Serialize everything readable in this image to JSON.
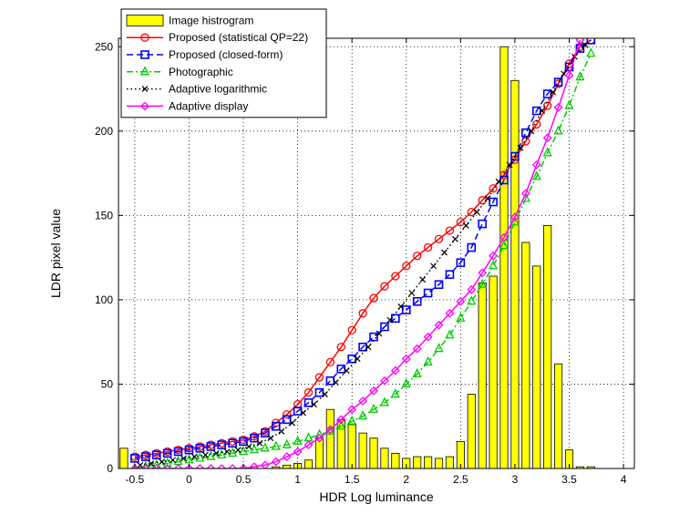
{
  "chart_data": {
    "type": "line",
    "xlabel": "HDR Log luminance",
    "ylabel": "LDR pixel value",
    "xlim": [
      -0.65,
      4.1
    ],
    "ylim": [
      0,
      255
    ],
    "xticks": [
      -0.5,
      0,
      0.5,
      1,
      1.5,
      2,
      2.5,
      3,
      3.5,
      4
    ],
    "xtick_labels": [
      "-0.5",
      "0",
      "0.5",
      "1",
      "1.5",
      "2",
      "2.5",
      "3",
      "3.5",
      "4"
    ],
    "yticks": [
      0,
      50,
      100,
      150,
      200,
      250
    ],
    "ytick_labels": [
      "0",
      "50",
      "100",
      "150",
      "200",
      "250"
    ],
    "grid": true,
    "legend_position": "top-left",
    "histogram": {
      "name": "Image histrogram",
      "color": "#ffff00",
      "edge_color": "#000000",
      "bar_width": 0.07,
      "x": [
        -0.6,
        -0.5,
        -0.4,
        -0.3,
        -0.2,
        -0.1,
        0,
        0.1,
        0.2,
        0.3,
        0.4,
        0.5,
        0.6,
        0.7,
        0.8,
        0.9,
        1.0,
        1.1,
        1.2,
        1.3,
        1.4,
        1.5,
        1.6,
        1.7,
        1.8,
        1.9,
        2.0,
        2.1,
        2.2,
        2.3,
        2.4,
        2.5,
        2.6,
        2.7,
        2.8,
        2.9,
        3.0,
        3.1,
        3.2,
        3.3,
        3.4,
        3.5,
        3.6,
        3.7,
        3.8
      ],
      "values": [
        12,
        0,
        0,
        0,
        0,
        0,
        0,
        0,
        0,
        0,
        0,
        0,
        0,
        0,
        1,
        2,
        3,
        5,
        18,
        35,
        29,
        26,
        21,
        18,
        12,
        9,
        6,
        7,
        7,
        6,
        7,
        16,
        44,
        110,
        114,
        250,
        230,
        134,
        120,
        144,
        62,
        11,
        1,
        1,
        0
      ]
    },
    "series": [
      {
        "name": "Proposed (statistical QP=22)",
        "color": "#ff0000",
        "line": "solid",
        "marker": "circle",
        "x": [
          -0.5,
          -0.4,
          -0.3,
          -0.2,
          -0.1,
          0,
          0.1,
          0.2,
          0.3,
          0.4,
          0.5,
          0.6,
          0.7,
          0.8,
          0.9,
          1.0,
          1.1,
          1.2,
          1.3,
          1.4,
          1.5,
          1.6,
          1.7,
          1.8,
          1.9,
          2.0,
          2.1,
          2.2,
          2.3,
          2.4,
          2.5,
          2.6,
          2.7,
          2.8,
          2.9,
          3.0,
          3.1,
          3.2,
          3.3,
          3.4,
          3.5,
          3.6,
          3.7
        ],
        "y": [
          7,
          8,
          9,
          10,
          11,
          12,
          13,
          14,
          15,
          16,
          17,
          19,
          22,
          27,
          32,
          38,
          45,
          54,
          63,
          72,
          82,
          92,
          101,
          108,
          114,
          120,
          126,
          131,
          136,
          141,
          146,
          152,
          159,
          166,
          174,
          183,
          194,
          204,
          215,
          228,
          240,
          250,
          254
        ]
      },
      {
        "name": "Proposed (closed-form)",
        "color": "#0000ff",
        "line": "dashed",
        "marker": "square",
        "x": [
          -0.5,
          -0.4,
          -0.3,
          -0.2,
          -0.1,
          0,
          0.1,
          0.2,
          0.3,
          0.4,
          0.5,
          0.6,
          0.7,
          0.8,
          0.9,
          1.0,
          1.1,
          1.2,
          1.3,
          1.4,
          1.5,
          1.6,
          1.7,
          1.8,
          1.9,
          2.0,
          2.1,
          2.2,
          2.3,
          2.4,
          2.5,
          2.6,
          2.7,
          2.8,
          2.9,
          3.0,
          3.1,
          3.2,
          3.3,
          3.4,
          3.5,
          3.6,
          3.7
        ],
        "y": [
          6,
          7,
          8,
          9,
          10,
          11,
          12,
          13,
          14,
          15,
          16,
          18,
          21,
          25,
          29,
          34,
          39,
          45,
          52,
          59,
          65,
          72,
          78,
          84,
          89,
          94,
          99,
          104,
          109,
          115,
          122,
          131,
          145,
          158,
          171,
          185,
          199,
          212,
          222,
          229,
          238,
          249,
          254
        ]
      },
      {
        "name": "Photographic",
        "color": "#00cc00",
        "line": "dashdot",
        "marker": "triangle",
        "x": [
          -0.5,
          -0.4,
          -0.3,
          -0.2,
          -0.1,
          0,
          0.1,
          0.2,
          0.3,
          0.4,
          0.5,
          0.6,
          0.7,
          0.8,
          0.9,
          1.0,
          1.1,
          1.2,
          1.3,
          1.4,
          1.5,
          1.6,
          1.7,
          1.8,
          1.9,
          2.0,
          2.1,
          2.2,
          2.3,
          2.4,
          2.5,
          2.6,
          2.7,
          2.8,
          2.9,
          3.0,
          3.1,
          3.2,
          3.3,
          3.4,
          3.5,
          3.6,
          3.7
        ],
        "y": [
          0,
          1,
          2,
          3,
          4,
          5,
          6,
          7,
          8,
          9,
          10,
          11,
          12,
          13,
          14,
          16,
          18,
          20,
          22,
          25,
          28,
          31,
          35,
          39,
          44,
          50,
          56,
          63,
          71,
          79,
          89,
          99,
          109,
          120,
          132,
          146,
          160,
          173,
          187,
          200,
          215,
          232,
          246
        ]
      },
      {
        "name": "Adaptive logarithmic",
        "color": "#000000",
        "line": "dotted",
        "marker": "x",
        "x": [
          -0.45,
          -0.35,
          -0.25,
          -0.15,
          -0.05,
          0.05,
          0.15,
          0.25,
          0.35,
          0.45,
          0.55,
          0.65,
          0.75,
          0.85,
          0.95,
          1.05,
          1.15,
          1.25,
          1.35,
          1.45,
          1.55,
          1.65,
          1.75,
          1.85,
          1.95,
          2.05,
          2.15,
          2.25,
          2.35,
          2.45,
          2.55,
          2.65,
          2.75,
          2.85,
          2.95,
          3.05,
          3.15,
          3.25,
          3.35,
          3.45,
          3.55,
          3.65
        ],
        "y": [
          2,
          3,
          4,
          5,
          6,
          7,
          8,
          9,
          10,
          11,
          13,
          15,
          18,
          22,
          27,
          33,
          38,
          44,
          51,
          58,
          65,
          72,
          80,
          88,
          96,
          104,
          112,
          120,
          128,
          136,
          144,
          152,
          160,
          170,
          180,
          190,
          200,
          212,
          223,
          234,
          244,
          251
        ]
      },
      {
        "name": "Adaptive display",
        "color": "#ff00ff",
        "line": "solid",
        "marker": "diamond",
        "x": [
          -0.5,
          -0.4,
          -0.3,
          -0.2,
          -0.1,
          0,
          0.1,
          0.2,
          0.3,
          0.4,
          0.5,
          0.6,
          0.7,
          0.8,
          0.9,
          1.0,
          1.1,
          1.2,
          1.3,
          1.4,
          1.5,
          1.6,
          1.7,
          1.8,
          1.9,
          2.0,
          2.1,
          2.2,
          2.3,
          2.4,
          2.5,
          2.6,
          2.7,
          2.8,
          2.9,
          3.0,
          3.1,
          3.2,
          3.3,
          3.4,
          3.5,
          3.6
        ],
        "y": [
          0,
          0,
          0,
          0,
          0,
          0,
          0,
          0,
          0,
          0,
          0,
          1,
          2,
          4,
          7,
          10,
          14,
          18,
          23,
          29,
          35,
          40,
          46,
          52,
          58,
          65,
          71,
          78,
          85,
          92,
          99,
          106,
          116,
          126,
          137,
          149,
          163,
          180,
          196,
          214,
          233,
          254
        ]
      }
    ]
  }
}
